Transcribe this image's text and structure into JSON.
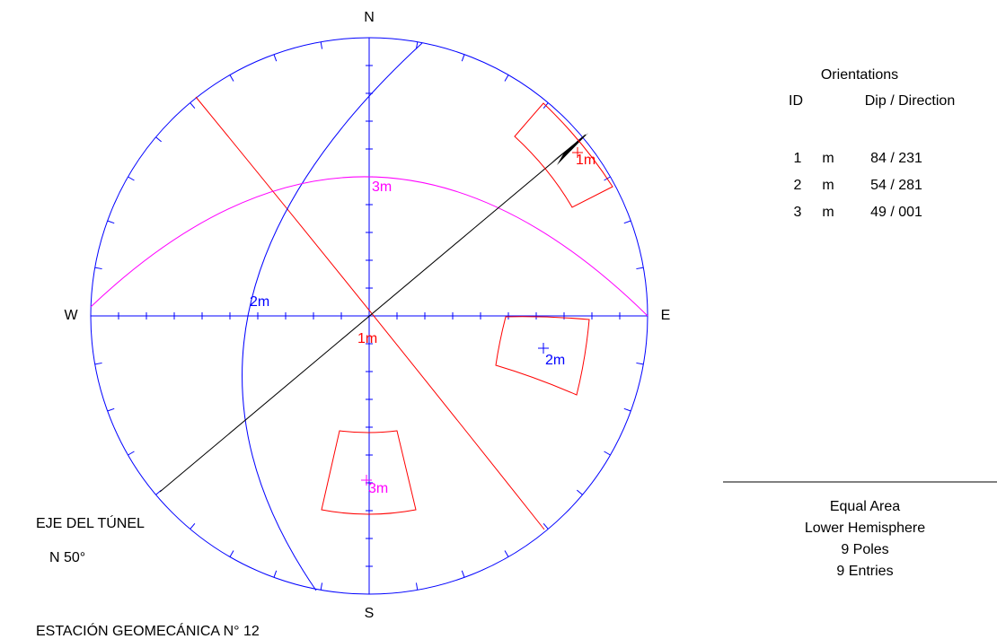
{
  "compass": {
    "north": "N",
    "south": "S",
    "east": "E",
    "west": "W"
  },
  "great_circle_labels": {
    "1": "1m",
    "2": "2m",
    "3": "3m"
  },
  "pole_labels": {
    "1": "1m",
    "2": "2m",
    "3": "3m"
  },
  "orientations": {
    "title": "Orientations",
    "headers": {
      "id": "ID",
      "dip_direction": "Dip / Direction"
    },
    "rows": [
      {
        "id": "1",
        "type": "m",
        "value": "84 / 231"
      },
      {
        "id": "2",
        "type": "m",
        "value": "54 / 281"
      },
      {
        "id": "3",
        "type": "m",
        "value": "49 / 001"
      }
    ]
  },
  "info": [
    "Equal Area",
    "Lower Hemisphere",
    "9 Poles",
    "9 Entries"
  ],
  "tunnel": {
    "title": "EJE DEL TÚNEL",
    "value": "N 50°"
  },
  "station": "ESTACIÓN GEOMECÁNICA N° 12"
}
